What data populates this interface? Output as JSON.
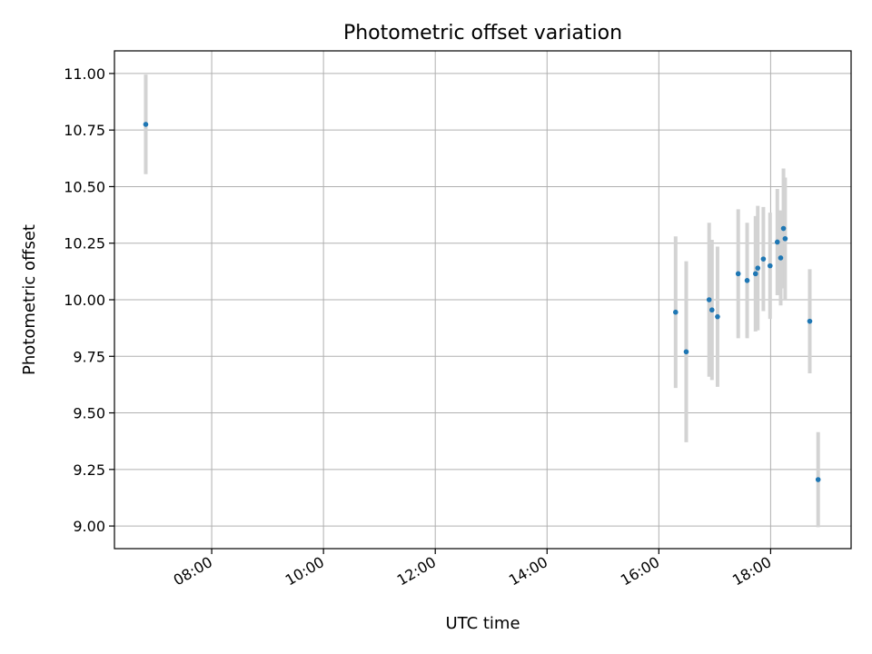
{
  "chart_data": {
    "type": "scatter",
    "title": "Photometric offset variation",
    "xlabel": "UTC time",
    "ylabel": "Photometric offset",
    "x_unit": "hours UTC",
    "xlim": [
      6.26,
      19.44
    ],
    "ylim": [
      8.9,
      11.1
    ],
    "x_ticks": [
      8,
      10,
      12,
      14,
      16,
      18
    ],
    "x_tick_labels": [
      "08:00",
      "10:00",
      "12:00",
      "14:00",
      "16:00",
      "18:00"
    ],
    "y_ticks": [
      9.0,
      9.25,
      9.5,
      9.75,
      10.0,
      10.25,
      10.5,
      10.75,
      11.0
    ],
    "y_tick_labels": [
      "9.00",
      "9.25",
      "9.50",
      "9.75",
      "10.00",
      "10.25",
      "10.50",
      "10.75",
      "11.00"
    ],
    "grid": true,
    "colors": {
      "point": "#1f77b4",
      "errorbar": "#d3d3d3"
    },
    "points": [
      {
        "time": "06:49",
        "x": 6.82,
        "y": 10.775,
        "err": 0.22
      },
      {
        "time": "16:18",
        "x": 16.3,
        "y": 9.945,
        "err": 0.335
      },
      {
        "time": "16:29",
        "x": 16.49,
        "y": 9.77,
        "err": 0.4
      },
      {
        "time": "16:54",
        "x": 16.9,
        "y": 10.0,
        "err": 0.34
      },
      {
        "time": "16:57",
        "x": 16.95,
        "y": 9.955,
        "err": 0.31
      },
      {
        "time": "17:03",
        "x": 17.05,
        "y": 9.925,
        "err": 0.31
      },
      {
        "time": "17:25",
        "x": 17.42,
        "y": 10.115,
        "err": 0.285
      },
      {
        "time": "17:35",
        "x": 17.58,
        "y": 10.085,
        "err": 0.255
      },
      {
        "time": "17:44",
        "x": 17.73,
        "y": 10.115,
        "err": 0.255
      },
      {
        "time": "17:46",
        "x": 17.77,
        "y": 10.14,
        "err": 0.275
      },
      {
        "time": "17:52",
        "x": 17.87,
        "y": 10.18,
        "err": 0.23
      },
      {
        "time": "17:59",
        "x": 17.99,
        "y": 10.15,
        "err": 0.235
      },
      {
        "time": "18:07",
        "x": 18.12,
        "y": 10.255,
        "err": 0.235
      },
      {
        "time": "18:11",
        "x": 18.18,
        "y": 10.185,
        "err": 0.21
      },
      {
        "time": "18:14",
        "x": 18.23,
        "y": 10.315,
        "err": 0.265
      },
      {
        "time": "18:16",
        "x": 18.26,
        "y": 10.27,
        "err": 0.27
      },
      {
        "time": "18:42",
        "x": 18.7,
        "y": 9.905,
        "err": 0.23
      },
      {
        "time": "18:51",
        "x": 18.85,
        "y": 9.205,
        "err": 0.21
      }
    ]
  }
}
